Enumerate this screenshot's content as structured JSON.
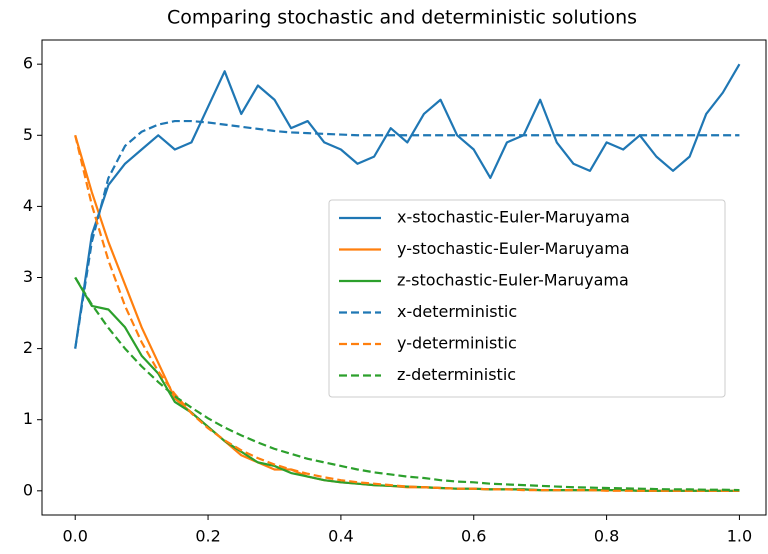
{
  "chart_data": {
    "type": "line",
    "title": "Comparing stochastic and deterministic solutions",
    "x": [
      0,
      0.025,
      0.05,
      0.075,
      0.1,
      0.125,
      0.15,
      0.175,
      0.2,
      0.225,
      0.25,
      0.275,
      0.3,
      0.325,
      0.35,
      0.375,
      0.4,
      0.425,
      0.45,
      0.475,
      0.5,
      0.525,
      0.55,
      0.575,
      0.6,
      0.625,
      0.65,
      0.675,
      0.7,
      0.725,
      0.75,
      0.775,
      0.8,
      0.825,
      0.85,
      0.875,
      0.9,
      0.925,
      0.95,
      0.975,
      1.0
    ],
    "series": [
      {
        "name": "x-stochastic-Euler-Maruyama",
        "color": "#1f77b4",
        "style": "solid",
        "values": [
          2.0,
          3.6,
          4.3,
          4.6,
          4.8,
          5.0,
          4.8,
          4.9,
          5.4,
          5.9,
          5.3,
          5.7,
          5.5,
          5.1,
          5.2,
          4.9,
          4.8,
          4.6,
          4.7,
          5.1,
          4.9,
          5.3,
          5.5,
          5.0,
          4.8,
          4.4,
          4.9,
          5.0,
          5.5,
          4.9,
          4.6,
          4.5,
          4.9,
          4.8,
          5.0,
          4.7,
          4.5,
          4.7,
          5.3,
          5.6,
          6.0
        ]
      },
      {
        "name": "y-stochastic-Euler-Maruyama",
        "color": "#ff7f0e",
        "style": "solid",
        "values": [
          5.0,
          4.2,
          3.5,
          2.9,
          2.3,
          1.8,
          1.3,
          1.1,
          0.9,
          0.7,
          0.5,
          0.4,
          0.3,
          0.3,
          0.2,
          0.15,
          0.12,
          0.1,
          0.08,
          0.07,
          0.05,
          0.05,
          0.04,
          0.03,
          0.03,
          0.02,
          0.02,
          0.02,
          0.01,
          0.01,
          0.01,
          0.01,
          0.01,
          0.01,
          0,
          0,
          0,
          0,
          0,
          0,
          0
        ]
      },
      {
        "name": "z-stochastic-Euler-Maruyama",
        "color": "#2ca02c",
        "style": "solid",
        "values": [
          3.0,
          2.6,
          2.55,
          2.3,
          1.9,
          1.65,
          1.25,
          1.1,
          0.9,
          0.7,
          0.55,
          0.4,
          0.35,
          0.25,
          0.2,
          0.15,
          0.12,
          0.1,
          0.08,
          0.07,
          0.06,
          0.05,
          0.04,
          0.03,
          0.03,
          0.02,
          0.02,
          0.02,
          0.01,
          0.01,
          0.01,
          0.01,
          0.01,
          0.01,
          0,
          0,
          0,
          0,
          0,
          0,
          0
        ]
      },
      {
        "name": "x-deterministic",
        "color": "#1f77b4",
        "style": "dashed",
        "values": [
          2.0,
          3.5,
          4.4,
          4.85,
          5.05,
          5.15,
          5.2,
          5.2,
          5.18,
          5.15,
          5.12,
          5.09,
          5.06,
          5.04,
          5.03,
          5.02,
          5.01,
          5.0,
          5.0,
          5.0,
          5.0,
          5.0,
          5.0,
          5.0,
          5.0,
          5.0,
          5.0,
          5.0,
          5.0,
          5.0,
          5.0,
          5.0,
          5.0,
          5.0,
          5.0,
          5.0,
          5.0,
          5.0,
          5.0,
          5.0,
          5.0
        ]
      },
      {
        "name": "y-deterministic",
        "color": "#ff7f0e",
        "style": "dashed",
        "values": [
          5.0,
          4.02,
          3.24,
          2.6,
          2.09,
          1.68,
          1.36,
          1.09,
          0.88,
          0.71,
          0.57,
          0.46,
          0.37,
          0.3,
          0.24,
          0.19,
          0.15,
          0.12,
          0.1,
          0.08,
          0.06,
          0.05,
          0.04,
          0.03,
          0.03,
          0.02,
          0.02,
          0.01,
          0.01,
          0.01,
          0.01,
          0.01,
          0,
          0,
          0,
          0,
          0,
          0,
          0,
          0,
          0
        ]
      },
      {
        "name": "z-deterministic",
        "color": "#2ca02c",
        "style": "dashed",
        "values": [
          3.0,
          2.62,
          2.29,
          2.0,
          1.75,
          1.53,
          1.33,
          1.17,
          1.02,
          0.89,
          0.78,
          0.68,
          0.59,
          0.52,
          0.45,
          0.4,
          0.35,
          0.3,
          0.26,
          0.23,
          0.2,
          0.18,
          0.15,
          0.13,
          0.12,
          0.1,
          0.09,
          0.08,
          0.07,
          0.06,
          0.05,
          0.045,
          0.04,
          0.035,
          0.03,
          0.025,
          0.02,
          0.02,
          0.015,
          0.015,
          0.01
        ]
      }
    ],
    "xlim": [
      -0.05,
      1.04
    ],
    "ylim": [
      -0.34,
      6.34
    ],
    "xticks": [
      {
        "value": 0,
        "label": "0.0"
      },
      {
        "value": 0.2,
        "label": "0.2"
      },
      {
        "value": 0.4,
        "label": "0.4"
      },
      {
        "value": 0.6,
        "label": "0.6"
      },
      {
        "value": 0.8,
        "label": "0.8"
      },
      {
        "value": 1.0,
        "label": "1.0"
      }
    ],
    "yticks": [
      0,
      1,
      2,
      3,
      4,
      5,
      6
    ],
    "grid": false,
    "legend": "center right"
  }
}
